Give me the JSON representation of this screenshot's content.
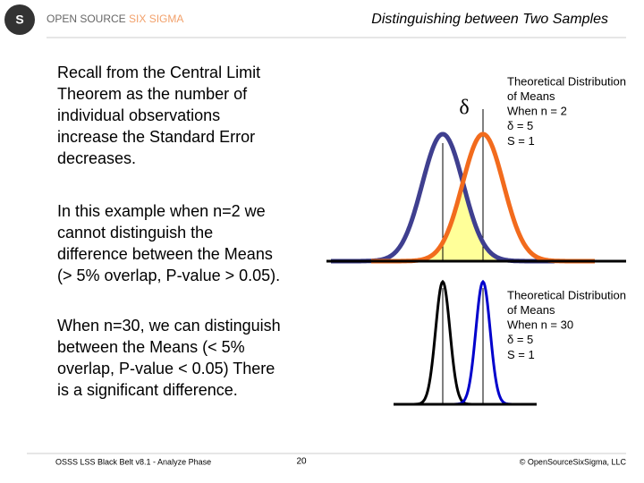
{
  "header": {
    "brand": "OPEN SOURCE",
    "brand_accent": "SIX SIGMA",
    "title": "Distinguishing between Two Samples"
  },
  "paragraphs": [
    [
      "Recall from the Central Limit",
      "Theorem as the number of",
      "individual observations",
      "increase the Standard Error",
      "decreases."
    ],
    [
      "In this example when n=2 we",
      "cannot distinguish the",
      "difference between the Means",
      "(> 5% overlap, P-value > 0.05)."
    ],
    [
      "When n=30, we can distinguish",
      "between the Means (< 5%",
      "overlap, P-value < 0.05) There",
      "is a significant difference."
    ]
  ],
  "delta_symbol": "δ",
  "annotations": [
    [
      "Theoretical Distribution",
      "of Means",
      "When n = 2",
      "δ = 5",
      "S = 1"
    ],
    [
      "Theoretical Distribution",
      "of Means",
      "When n = 30",
      "δ = 5",
      "S = 1"
    ]
  ],
  "footer": {
    "left": "OSSS LSS Black Belt v8.1 - Analyze Phase",
    "page": "20",
    "right": "© OpenSourceSixSigma, LLC"
  }
}
